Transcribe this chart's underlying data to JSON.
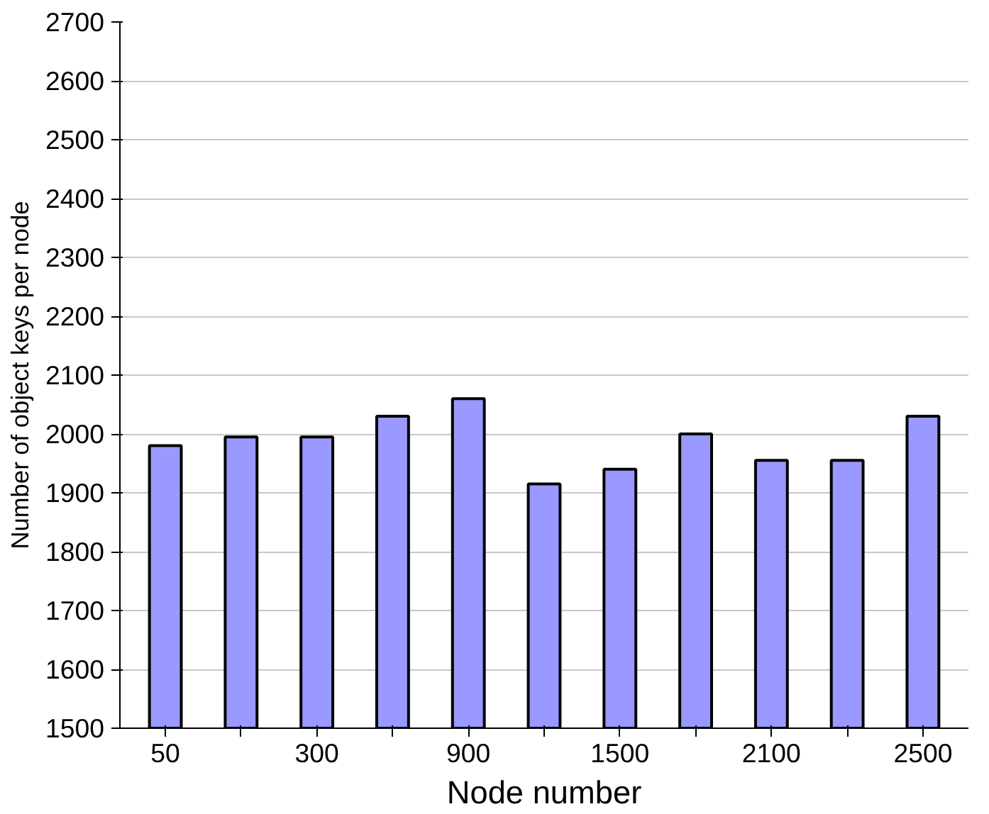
{
  "chart_data": {
    "type": "bar",
    "xlabel": "Node number",
    "ylabel": "Number of object keys per node",
    "categories": [
      "50",
      null,
      "300",
      null,
      "900",
      null,
      "1500",
      null,
      "2100",
      null,
      "2500"
    ],
    "values": [
      1980,
      1995,
      1995,
      2030,
      2060,
      1915,
      1940,
      2000,
      1955,
      1955,
      2030
    ],
    "color": "#9999ff",
    "ylim": [
      1500,
      2700
    ],
    "yticks": [
      1500,
      1600,
      1700,
      1800,
      1900,
      2000,
      2100,
      2200,
      2300,
      2400,
      2500,
      2600,
      2700
    ],
    "grid": "y"
  }
}
